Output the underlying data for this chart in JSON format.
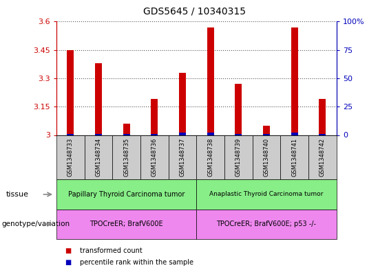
{
  "title": "GDS5645 / 10340315",
  "samples": [
    "GSM1348733",
    "GSM1348734",
    "GSM1348735",
    "GSM1348736",
    "GSM1348737",
    "GSM1348738",
    "GSM1348739",
    "GSM1348740",
    "GSM1348741",
    "GSM1348742"
  ],
  "transformed_count": [
    3.45,
    3.38,
    3.06,
    3.19,
    3.33,
    3.57,
    3.27,
    3.05,
    3.57,
    3.19
  ],
  "percentile_rank": [
    1,
    1,
    1,
    1,
    2,
    2,
    1,
    1,
    2,
    1
  ],
  "ylim": [
    3.0,
    3.6
  ],
  "yticks": [
    3.0,
    3.15,
    3.3,
    3.45,
    3.6
  ],
  "ytick_labels": [
    "3",
    "3.15",
    "3.3",
    "3.45",
    "3.6"
  ],
  "right_yticks": [
    0,
    25,
    50,
    75,
    100
  ],
  "right_ytick_labels": [
    "0",
    "25",
    "50",
    "75",
    "100%"
  ],
  "bar_color": "#cc0000",
  "percentile_color": "#0000bb",
  "tissue_groups": [
    {
      "label": "Papillary Thyroid Carcinoma tumor",
      "start": 0,
      "end": 5,
      "color": "#88ee88"
    },
    {
      "label": "Anaplastic Thyroid Carcinoma tumor",
      "start": 5,
      "end": 10,
      "color": "#88ee88"
    }
  ],
  "genotype_groups": [
    {
      "label": "TPOCreER; BrafV600E",
      "start": 0,
      "end": 5,
      "color": "#ee88ee"
    },
    {
      "label": "TPOCreER; BrafV600E; p53 -/-",
      "start": 5,
      "end": 10,
      "color": "#ee88ee"
    }
  ],
  "tissue_label": "tissue",
  "genotype_label": "genotype/variation",
  "legend_items": [
    {
      "label": "transformed count",
      "color": "#cc0000"
    },
    {
      "label": "percentile rank within the sample",
      "color": "#0000bb"
    }
  ],
  "bg_color": "#ffffff",
  "grid_color": "#555555",
  "sample_bg_color": "#cccccc",
  "left_axis_color": "#cc0000",
  "right_axis_color": "#0000bb",
  "bar_width": 0.25
}
